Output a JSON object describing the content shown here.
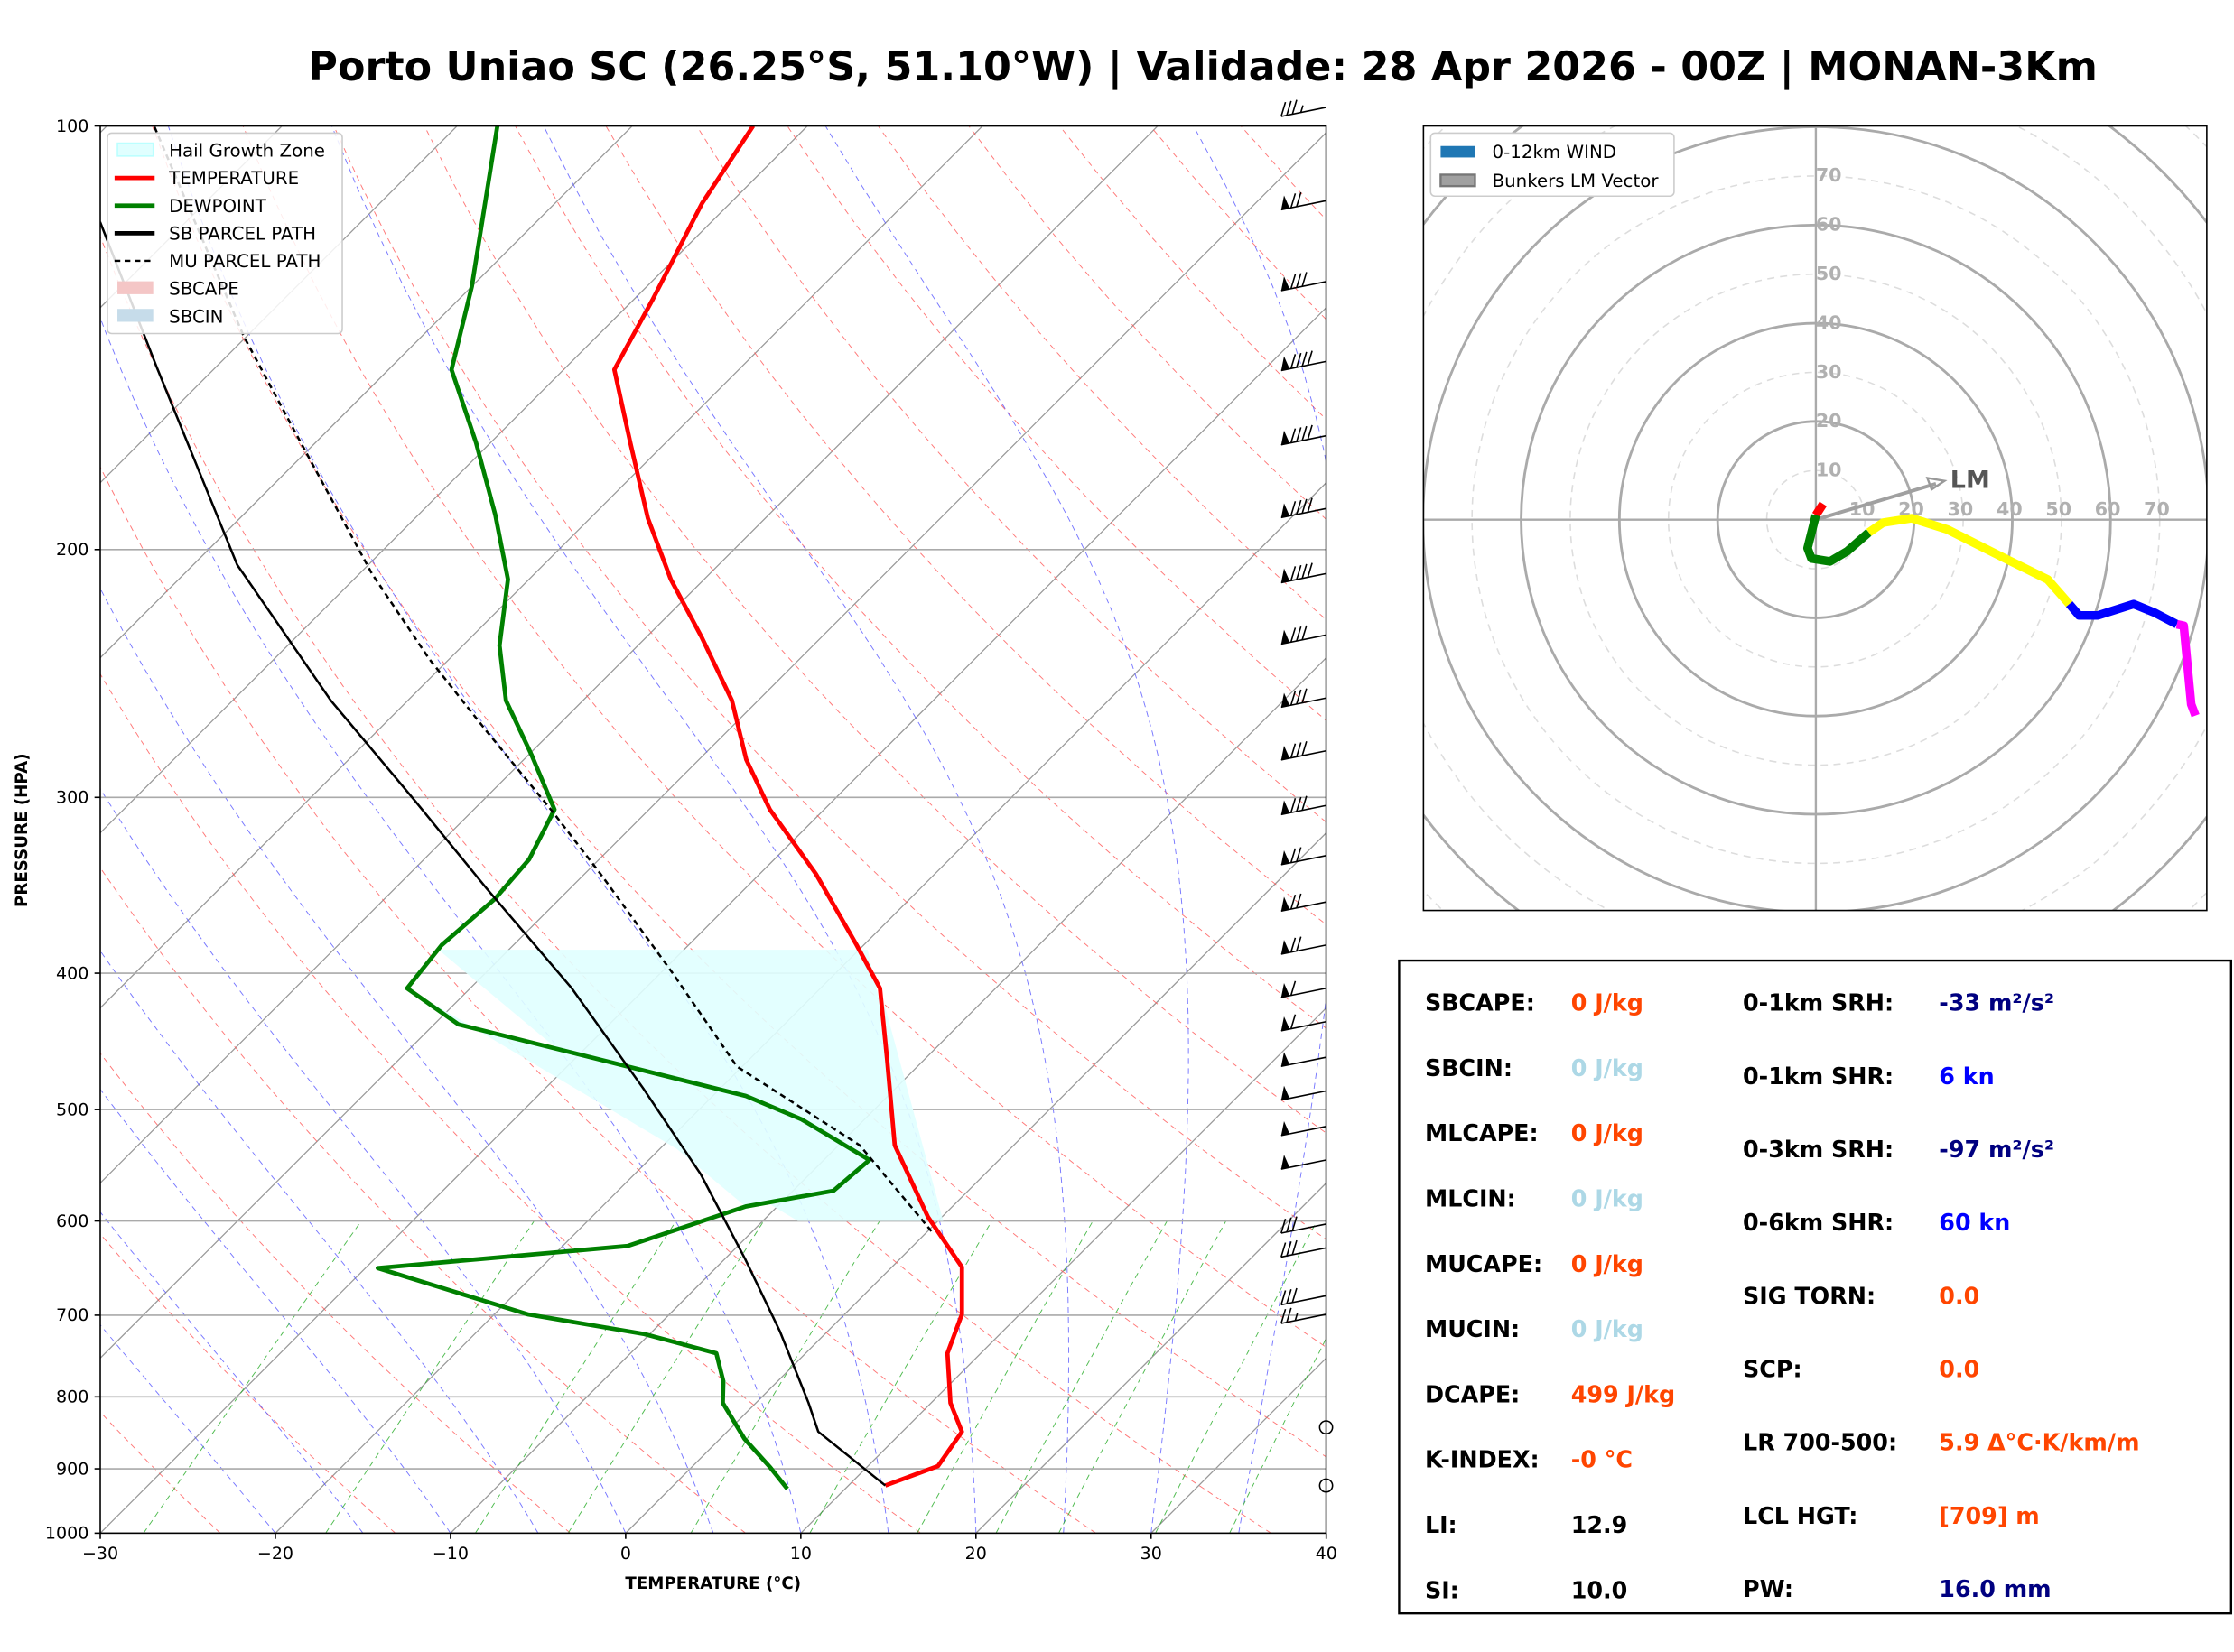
{
  "title": "Porto Uniao SC (26.25°S, 51.10°W) | Validade: 28 Apr 2026 - 00Z | MONAN-3Km",
  "chart_data": [
    {
      "type": "line",
      "subtype": "skew-t log-p",
      "xlabel": "TEMPERATURE (°C)",
      "ylabel": "PRESSURE (HPA)",
      "xlim": [
        -30,
        40
      ],
      "ylim": [
        1000,
        100
      ],
      "y_scale": "log",
      "x_ticks": [
        "−30",
        "−20",
        "−10",
        "0",
        "10",
        "20",
        "30",
        "40"
      ],
      "x_tick_values": [
        -30,
        -20,
        -10,
        0,
        10,
        20,
        30,
        40
      ],
      "y_ticks": [
        "100",
        "200",
        "300",
        "400",
        "500",
        "600",
        "700",
        "800",
        "900",
        "1000"
      ],
      "y_tick_values": [
        100,
        200,
        300,
        400,
        500,
        600,
        700,
        800,
        900,
        1000
      ],
      "grid": true,
      "legend_position": "top-left",
      "legend": [
        {
          "label": "Hail Growth Zone",
          "color": "#e0ffff",
          "style": "patch"
        },
        {
          "label": "TEMPERATURE",
          "color": "#ff0000",
          "style": "line"
        },
        {
          "label": "DEWPOINT",
          "color": "#008000",
          "style": "line"
        },
        {
          "label": "SB PARCEL PATH",
          "color": "#000000",
          "style": "line"
        },
        {
          "label": "MU PARCEL PATH",
          "color": "#000000",
          "style": "dashed"
        },
        {
          "label": "SBCAPE",
          "color": "#f4c6c6",
          "style": "patch"
        },
        {
          "label": "SBCIN",
          "color": "#c6dcea",
          "style": "patch"
        }
      ],
      "series": [
        {
          "name": "TEMPERATURE",
          "color": "#ff0000",
          "p": [
            925,
            896,
            847,
            808,
            745,
            699,
            647,
            596,
            530,
            461,
            410,
            382,
            340,
            306,
            282,
            256,
            231,
            210,
            190,
            168,
            149,
            133,
            113.5,
            100
          ],
          "T": [
            12.1,
            14.0,
            13.4,
            11.1,
            8.1,
            6.7,
            4.0,
            -0.8,
            -6.8,
            -12.1,
            -16.6,
            -20.4,
            -26.8,
            -33.1,
            -37.3,
            -41.5,
            -46.8,
            -51.9,
            -56.7,
            -62.0,
            -67.1,
            -68.9,
            -71.6,
            -73.1
          ]
        },
        {
          "name": "DEWPOINT",
          "color": "#008000",
          "p": [
            930,
            898,
            857,
            808,
            780,
            745,
            722,
            699,
            648,
            625,
            586,
            571,
            543,
            508,
            489,
            435,
            410,
            382,
            354,
            332,
            306,
            280,
            256,
            234,
            210,
            189,
            168,
            149,
            130,
            100
          ],
          "T": [
            6.7,
            4.5,
            1.4,
            -1.9,
            -3.1,
            -5.1,
            -10.3,
            -18.1,
            -29.3,
            -16.3,
            -11.8,
            -7.7,
            -7.4,
            -13.6,
            -18.1,
            -38.6,
            -43.6,
            -44.1,
            -43.7,
            -44.0,
            -45.4,
            -49.8,
            -54.4,
            -57.9,
            -61.2,
            -65.6,
            -70.8,
            -76.4,
            -80.0,
            -87.7
          ]
        },
        {
          "name": "SB PARCEL PATH",
          "color": "#000000",
          "p": [
            925,
            847,
            808,
            719,
            639,
            556,
            483,
            410,
            348,
            302,
            256,
            205,
            148,
            117
          ],
          "T": [
            12.1,
            5.2,
            3.0,
            -2.7,
            -8.8,
            -16.2,
            -24.4,
            -34.2,
            -44.8,
            -53.8,
            -64.4,
            -77.5,
            -93.5,
            -104.9
          ]
        },
        {
          "name": "MU PARCEL PATH",
          "color": "#000000",
          "dashed": true,
          "p": [
            610,
            530,
            466,
            400,
            340,
            306,
            269,
            239,
            208,
            168,
            141,
            100
          ],
          "T": [
            0.2,
            -8.8,
            -20.3,
            -29.3,
            -39.1,
            -45.6,
            -53.8,
            -61.2,
            -69.3,
            -80.8,
            -90.2,
            -107.3
          ]
        }
      ],
      "hail_growth_zone": {
        "p_bottom": 600,
        "p_top": 385
      },
      "wind_barbs_kn": [
        {
          "p": 97,
          "speed": 35
        },
        {
          "p": 113,
          "speed": 70
        },
        {
          "p": 129,
          "speed": 80
        },
        {
          "p": 147,
          "speed": 90
        },
        {
          "p": 166,
          "speed": 90
        },
        {
          "p": 187,
          "speed": 90
        },
        {
          "p": 208,
          "speed": 90
        },
        {
          "p": 230,
          "speed": 80
        },
        {
          "p": 255,
          "speed": 80
        },
        {
          "p": 278,
          "speed": 80
        },
        {
          "p": 304,
          "speed": 80
        },
        {
          "p": 330,
          "speed": 70
        },
        {
          "p": 356,
          "speed": 70
        },
        {
          "p": 382,
          "speed": 70
        },
        {
          "p": 410,
          "speed": 60
        },
        {
          "p": 433,
          "speed": 60
        },
        {
          "p": 459,
          "speed": 50
        },
        {
          "p": 485,
          "speed": 50
        },
        {
          "p": 514,
          "speed": 50
        },
        {
          "p": 543,
          "speed": 50
        },
        {
          "p": 603,
          "speed": 30
        },
        {
          "p": 627,
          "speed": 30
        },
        {
          "p": 678,
          "speed": 30
        },
        {
          "p": 699,
          "speed": 25
        },
        {
          "p": 841,
          "speed": 0
        },
        {
          "p": 925,
          "speed": 0
        }
      ]
    },
    {
      "type": "line",
      "subtype": "hodograph",
      "legend_position": "top-left",
      "legend": [
        {
          "label": "0-12km WIND",
          "color": "#1f77b4"
        },
        {
          "label": "Bunkers LM Vector",
          "color": "#a0a0a0"
        }
      ],
      "ring_labels": [
        "10",
        "20",
        "30",
        "40",
        "50",
        "60",
        "70"
      ],
      "ring_values": [
        10,
        20,
        30,
        40,
        50,
        60,
        70
      ],
      "range": 80,
      "lm_label": "LM",
      "lm_vector": {
        "u": 26.2,
        "v": 7.9
      },
      "segments": [
        {
          "color": "#ff0000",
          "u": [
            1.5,
            0
          ],
          "v": [
            3.2,
            0.9
          ]
        },
        {
          "color": "#008000",
          "u": [
            0,
            -1.7,
            -0.9,
            2.9,
            6.4,
            10.8
          ],
          "v": [
            0.9,
            -5.8,
            -7.9,
            -8.5,
            -6.4,
            -2.6
          ]
        },
        {
          "color": "#ffff00",
          "u": [
            10.8,
            13.7,
            19.5,
            26.8,
            38.5,
            47.2,
            51.6
          ],
          "v": [
            -2.6,
            -0.6,
            0.3,
            -2.0,
            -7.9,
            -12.2,
            -17.2
          ]
        },
        {
          "color": "#0000ff",
          "u": [
            51.6,
            53.6,
            57.4,
            64.7,
            69.1,
            73.5
          ],
          "v": [
            -17.2,
            -19.5,
            -19.5,
            -17.2,
            -19.0,
            -21.3
          ]
        },
        {
          "color": "#ff00ff",
          "u": [
            73.5,
            74.9,
            75.8,
            76.4,
            77.3
          ],
          "v": [
            -21.3,
            -21.6,
            -31.2,
            -37.6,
            -39.9
          ]
        }
      ]
    }
  ],
  "stats": {
    "left": [
      {
        "label": "SBCAPE:",
        "value": "0 J/kg",
        "color": "#ff4500"
      },
      {
        "label": "SBCIN:",
        "value": "0 J/kg",
        "color": "#add8e6"
      },
      {
        "label": "MLCAPE:",
        "value": "0 J/kg",
        "color": "#ff4500"
      },
      {
        "label": "MLCIN:",
        "value": "0 J/kg",
        "color": "#add8e6"
      },
      {
        "label": "MUCAPE:",
        "value": "0 J/kg",
        "color": "#ff4500"
      },
      {
        "label": "MUCIN:",
        "value": "0 J/kg",
        "color": "#add8e6"
      },
      {
        "label": "DCAPE:",
        "value": "499 J/kg",
        "color": "#ff4500"
      },
      {
        "label": "K-INDEX:",
        "value": "-0 °C",
        "color": "#ff4500"
      },
      {
        "label": "LI:",
        "value": "12.9",
        "color": "#000000"
      },
      {
        "label": "SI:",
        "value": "10.0",
        "color": "#000000"
      }
    ],
    "right": [
      {
        "label": "0-1km SRH:",
        "value": "-33 m²/s²",
        "color": "#000080"
      },
      {
        "label": "0-1km SHR:",
        "value": "6 kn",
        "color": "#0000ff"
      },
      {
        "label": "0-3km SRH:",
        "value": "-97 m²/s²",
        "color": "#000080"
      },
      {
        "label": "0-6km SHR:",
        "value": "60 kn",
        "color": "#0000ff"
      },
      {
        "label": "SIG TORN:",
        "value": "0.0",
        "color": "#ff4500"
      },
      {
        "label": "SCP:",
        "value": "0.0",
        "color": "#ff4500"
      },
      {
        "label": "LR 700-500:",
        "value": "5.9 Δ°C·K/km/m",
        "color": "#ff4500"
      },
      {
        "label": "LCL HGT:",
        "value": "[709] m",
        "color": "#ff4500"
      },
      {
        "label": "PW:",
        "value": "16.0 mm",
        "color": "#000080"
      }
    ]
  }
}
